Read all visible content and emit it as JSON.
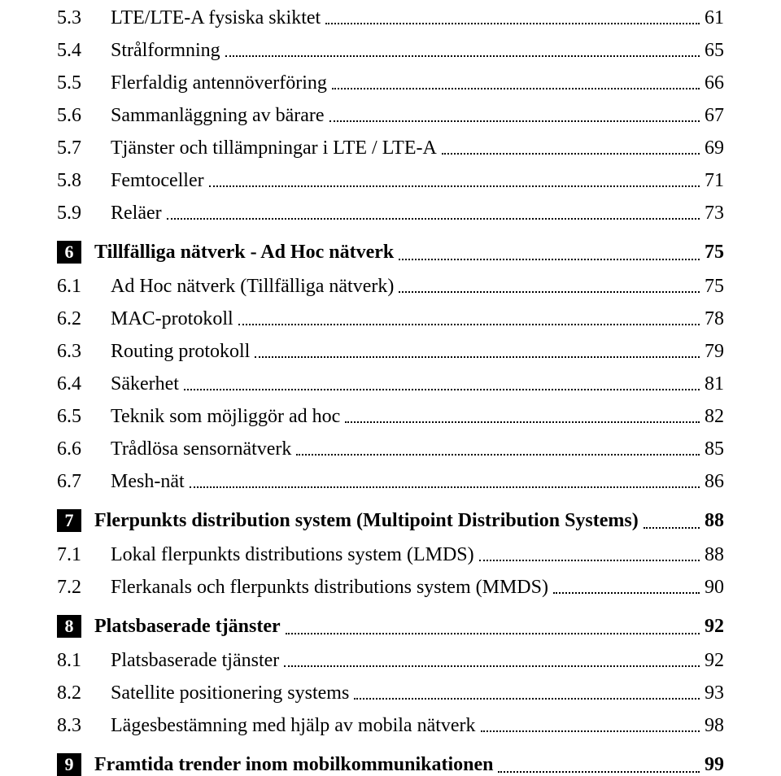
{
  "document": {
    "type": "table-of-contents",
    "font_family": "Times New Roman",
    "background_color": "#ffffff",
    "text_color": "#000000",
    "badge_bg": "#000000",
    "badge_fg": "#ffffff",
    "sub_fontsize": 24,
    "chapter_fontsize": 24,
    "leader_style": "dotted"
  },
  "entries": [
    {
      "kind": "sub",
      "num": "5.3",
      "title": "LTE/LTE-A fysiska skiktet",
      "page": "61"
    },
    {
      "kind": "sub",
      "num": "5.4",
      "title": "Strålformning",
      "page": "65"
    },
    {
      "kind": "sub",
      "num": "5.5",
      "title": "Flerfaldig antennöverföring",
      "page": "66"
    },
    {
      "kind": "sub",
      "num": "5.6",
      "title": "Sammanläggning av bärare",
      "page": "67"
    },
    {
      "kind": "sub",
      "num": "5.7",
      "title": "Tjänster och tillämpningar i LTE / LTE-A",
      "page": "69"
    },
    {
      "kind": "sub",
      "num": "5.8",
      "title": "Femtoceller",
      "page": "71"
    },
    {
      "kind": "sub",
      "num": "5.9",
      "title": "Reläer",
      "page": "73"
    },
    {
      "kind": "chap",
      "num": "6",
      "title": "Tillfälliga nätverk - Ad Hoc nätverk",
      "page": "75"
    },
    {
      "kind": "sub",
      "num": "6.1",
      "title": "Ad Hoc nätverk (Tillfälliga nätverk)",
      "page": "75"
    },
    {
      "kind": "sub",
      "num": "6.2",
      "title": "MAC-protokoll",
      "page": "78"
    },
    {
      "kind": "sub",
      "num": "6.3",
      "title": "Routing protokoll",
      "page": "79"
    },
    {
      "kind": "sub",
      "num": "6.4",
      "title": "Säkerhet",
      "page": "81"
    },
    {
      "kind": "sub",
      "num": "6.5",
      "title": "Teknik som möjliggör ad hoc",
      "page": "82"
    },
    {
      "kind": "sub",
      "num": "6.6",
      "title": "Trådlösa sensornätverk",
      "page": "85"
    },
    {
      "kind": "sub",
      "num": "6.7",
      "title": "Mesh-nät",
      "page": "86"
    },
    {
      "kind": "chap",
      "num": "7",
      "title": "Flerpunkts distribution system (Multipoint Distribution Systems)",
      "page": "88"
    },
    {
      "kind": "sub",
      "num": "7.1",
      "title": "Lokal flerpunkts distributions system (LMDS)",
      "page": "88"
    },
    {
      "kind": "sub",
      "num": "7.2",
      "title": "Flerkanals och flerpunkts distributions system (MMDS)",
      "page": "90"
    },
    {
      "kind": "chap",
      "num": "8",
      "title": "Platsbaserade tjänster",
      "page": "92"
    },
    {
      "kind": "sub",
      "num": "8.1",
      "title": "Platsbaserade tjänster",
      "page": "92"
    },
    {
      "kind": "sub",
      "num": "8.2",
      "title": "Satellite positionering systems",
      "page": "93"
    },
    {
      "kind": "sub",
      "num": "8.3",
      "title": "Lägesbestämning med hjälp av mobila nätverk",
      "page": "98"
    },
    {
      "kind": "chap",
      "num": "9",
      "title": "Framtida trender inom mobilkommunikationen",
      "page": "99"
    }
  ]
}
